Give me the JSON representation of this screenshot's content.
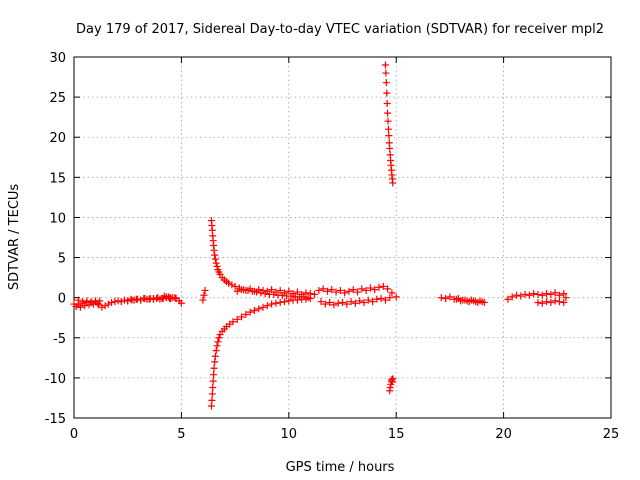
{
  "chart_data": {
    "type": "scatter",
    "title": "Day 179 of 2017, Sidereal Day-to-day VTEC variation (SDTVAR) for receiver mpl2",
    "xlabel": "GPS time / hours",
    "ylabel": "SDTVAR / TECUs",
    "xlim": [
      0,
      25
    ],
    "ylim": [
      -15,
      30
    ],
    "xticks": [
      "0",
      "5",
      "10",
      "15",
      "20",
      "25"
    ],
    "yticks": [
      "-15",
      "-10",
      "-5",
      "0",
      "5",
      "10",
      "15",
      "20",
      "25",
      "30"
    ],
    "grid": true,
    "marker": "+",
    "color": "#ff0000",
    "series": [
      {
        "name": "SDTVAR",
        "x": [
          0.0,
          0.1,
          0.2,
          0.3,
          0.4,
          0.5,
          0.6,
          0.7,
          0.8,
          0.9,
          1.0,
          1.1,
          1.2,
          0.2,
          0.4,
          0.6,
          0.8,
          1.0,
          1.15,
          1.3,
          1.45,
          1.6,
          1.75,
          1.9,
          2.05,
          2.2,
          2.35,
          2.5,
          2.65,
          2.8,
          2.95,
          3.1,
          3.25,
          3.4,
          3.55,
          3.7,
          3.85,
          4.0,
          4.15,
          4.3,
          4.45,
          4.6,
          4.75,
          4.9,
          5.0,
          2.5,
          2.7,
          2.9,
          3.1,
          3.3,
          3.5,
          3.7,
          3.9,
          4.1,
          4.3,
          4.5,
          4.7,
          4.3,
          4.5,
          4.2,
          4.4,
          6.0,
          6.1,
          6.05,
          6.4,
          6.42,
          6.44,
          6.46,
          6.48,
          6.5,
          6.52,
          6.55,
          6.58,
          6.62,
          6.66,
          6.7,
          6.75,
          6.8,
          6.9,
          7.0,
          7.1,
          7.2,
          7.35,
          7.5,
          7.7,
          7.9,
          8.1,
          8.3,
          8.5,
          8.7,
          8.9,
          9.1,
          9.3,
          9.5,
          9.7,
          9.9,
          10.1,
          10.3,
          10.5,
          10.7,
          10.9,
          6.4,
          6.42,
          6.44,
          6.46,
          6.48,
          6.5,
          6.52,
          6.55,
          6.58,
          6.62,
          6.66,
          6.7,
          6.75,
          6.8,
          6.9,
          7.0,
          7.1,
          7.25,
          7.4,
          7.6,
          7.8,
          8.0,
          8.2,
          8.4,
          8.6,
          8.8,
          9.0,
          9.2,
          9.4,
          9.6,
          9.8,
          10.0,
          10.2,
          10.4,
          10.6,
          10.8,
          11.0,
          7.6,
          7.8,
          8.0,
          8.2,
          8.4,
          8.6,
          8.8,
          9.0,
          9.2,
          9.4,
          9.6,
          9.8,
          10.0,
          10.2,
          10.4,
          10.6,
          10.8,
          11.0,
          11.2,
          11.4,
          11.6,
          11.8,
          12.0,
          12.2,
          12.4,
          12.6,
          12.8,
          13.0,
          13.2,
          13.4,
          13.6,
          13.8,
          14.0,
          14.2,
          14.4,
          14.6,
          14.8,
          15.0,
          11.5,
          11.7,
          11.9,
          12.1,
          12.3,
          12.5,
          12.7,
          12.9,
          13.1,
          13.3,
          13.5,
          13.7,
          13.9,
          14.1,
          14.3,
          14.5,
          14.7,
          14.5,
          14.52,
          14.54,
          14.56,
          14.58,
          14.6,
          14.62,
          14.64,
          14.66,
          14.68,
          14.7,
          14.72,
          14.74,
          14.76,
          14.78,
          14.8,
          14.82,
          14.84,
          14.7,
          14.72,
          14.75,
          14.78,
          14.8,
          14.82,
          14.85,
          17.1,
          17.3,
          17.5,
          17.7,
          17.9,
          18.1,
          18.3,
          18.5,
          18.7,
          18.9,
          19.1,
          17.8,
          18.0,
          18.2,
          18.4,
          18.6,
          18.8,
          19.0,
          20.2,
          20.4,
          20.6,
          20.8,
          21.0,
          21.2,
          21.4,
          21.6,
          21.8,
          22.0,
          22.2,
          22.4,
          22.6,
          22.8,
          21.6,
          21.8,
          22.0,
          22.2,
          22.4,
          22.6,
          22.8,
          22.9
        ],
        "y": [
          -0.8,
          -1.1,
          -0.9,
          -1.2,
          -0.7,
          -1.0,
          -0.6,
          -0.9,
          -0.5,
          -0.8,
          -0.4,
          -0.7,
          -0.4,
          -0.3,
          -0.5,
          -0.4,
          -0.6,
          -0.5,
          -0.9,
          -1.2,
          -1.0,
          -0.8,
          -0.6,
          -0.5,
          -0.4,
          -0.5,
          -0.3,
          -0.4,
          -0.2,
          -0.3,
          -0.2,
          -0.3,
          -0.1,
          -0.2,
          -0.1,
          -0.2,
          -0.1,
          -0.2,
          -0.1,
          0.0,
          -0.1,
          0.0,
          -0.1,
          -0.4,
          -0.7,
          -0.4,
          -0.3,
          -0.2,
          -0.3,
          -0.1,
          -0.2,
          -0.1,
          0.0,
          -0.1,
          0.0,
          -0.1,
          0.0,
          0.1,
          0.0,
          0.2,
          0.1,
          -0.3,
          0.9,
          0.3,
          9.6,
          9.0,
          8.4,
          7.7,
          7.1,
          6.5,
          5.9,
          5.3,
          4.8,
          4.3,
          3.9,
          3.5,
          3.2,
          2.9,
          2.5,
          2.2,
          2.0,
          1.8,
          1.6,
          1.4,
          1.2,
          1.0,
          0.9,
          0.8,
          0.7,
          0.6,
          0.5,
          0.4,
          0.4,
          0.3,
          0.3,
          0.2,
          0.2,
          0.1,
          0.1,
          0.1,
          0.0,
          -13.5,
          -12.8,
          -12.0,
          -11.2,
          -10.4,
          -9.6,
          -8.8,
          -8.0,
          -7.3,
          -6.6,
          -6.0,
          -5.5,
          -5.0,
          -4.6,
          -4.2,
          -3.9,
          -3.6,
          -3.3,
          -3.0,
          -2.7,
          -2.4,
          -2.1,
          -1.8,
          -1.6,
          -1.4,
          -1.2,
          -1.0,
          -0.8,
          -0.7,
          -0.6,
          -0.5,
          -0.4,
          -0.3,
          -0.3,
          -0.2,
          -0.2,
          -0.1,
          0.8,
          1.0,
          0.9,
          1.1,
          0.8,
          1.0,
          0.9,
          0.8,
          1.0,
          0.7,
          0.9,
          0.6,
          0.8,
          0.5,
          0.7,
          0.4,
          0.6,
          0.5,
          0.4,
          0.9,
          1.1,
          0.8,
          1.0,
          0.7,
          0.9,
          0.6,
          0.8,
          1.0,
          0.7,
          1.1,
          0.9,
          1.2,
          1.0,
          1.3,
          1.4,
          1.1,
          0.6,
          0.1,
          -0.5,
          -0.8,
          -0.6,
          -0.9,
          -0.7,
          -0.6,
          -0.8,
          -0.5,
          -0.7,
          -0.4,
          -0.6,
          -0.3,
          -0.5,
          -0.2,
          -0.1,
          -0.3,
          0.0,
          29.0,
          28.0,
          26.8,
          25.5,
          24.2,
          23.0,
          22.0,
          21.0,
          20.2,
          19.3,
          18.6,
          17.8,
          17.1,
          16.5,
          15.9,
          15.3,
          14.8,
          14.3,
          -11.6,
          -11.2,
          -10.8,
          -10.4,
          -10.2,
          -10.5,
          -10.1,
          0.0,
          -0.1,
          0.1,
          -0.2,
          -0.1,
          -0.3,
          -0.4,
          -0.3,
          -0.5,
          -0.4,
          -0.6,
          -0.2,
          -0.4,
          -0.3,
          -0.5,
          -0.4,
          -0.6,
          -0.5,
          -0.2,
          0.1,
          0.3,
          0.2,
          0.4,
          0.3,
          0.5,
          0.4,
          0.3,
          0.5,
          0.4,
          0.6,
          0.3,
          0.5,
          -0.6,
          -0.7,
          -0.5,
          -0.6,
          -0.4,
          -0.5,
          -0.6,
          0.0
        ]
      }
    ]
  }
}
